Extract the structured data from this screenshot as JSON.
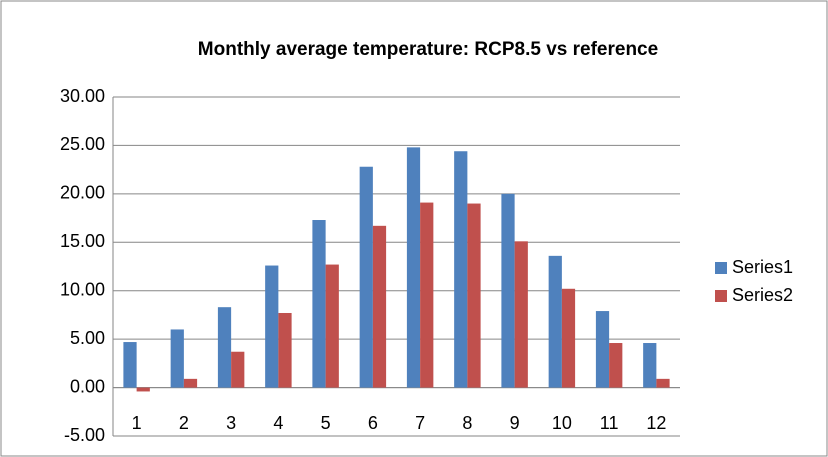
{
  "chart_data": {
    "type": "bar",
    "title": "Monthly average temperature: RCP8.5 vs reference",
    "categories": [
      "1",
      "2",
      "3",
      "4",
      "5",
      "6",
      "7",
      "8",
      "9",
      "10",
      "11",
      "12"
    ],
    "series": [
      {
        "name": "Series1",
        "color": "#4f81bd",
        "values": [
          4.7,
          6.0,
          8.3,
          12.6,
          17.3,
          22.8,
          24.8,
          24.4,
          20.0,
          13.6,
          7.9,
          4.6
        ]
      },
      {
        "name": "Series2",
        "color": "#c0504d",
        "values": [
          -0.4,
          0.9,
          3.7,
          7.7,
          12.7,
          16.7,
          19.1,
          19.0,
          15.1,
          10.2,
          4.6,
          0.9
        ]
      }
    ],
    "ylim": [
      -5,
      30
    ],
    "yticks": [
      {
        "value": -5,
        "label": "-5.00"
      },
      {
        "value": 0,
        "label": "0.00"
      },
      {
        "value": 5,
        "label": "5.00"
      },
      {
        "value": 10,
        "label": "10.00"
      },
      {
        "value": 15,
        "label": "15.00"
      },
      {
        "value": 20,
        "label": "20.00"
      },
      {
        "value": 25,
        "label": "25.00"
      },
      {
        "value": 30,
        "label": "30.00"
      }
    ],
    "grid": true,
    "legend": "right"
  }
}
